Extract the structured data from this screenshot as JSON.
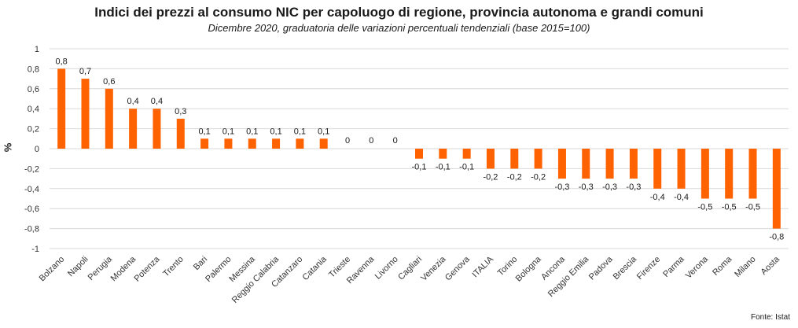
{
  "chart_data": {
    "type": "bar",
    "title": "Indici dei prezzi al consumo NIC per capoluogo di regione, provincia autonoma e grandi comuni",
    "subtitle": "Dicembre 2020, graduatoria delle variazioni percentuali tendenziali (base 2015=100)",
    "ylabel": "%",
    "xlabel": "",
    "ylim": [
      -1,
      1
    ],
    "yticks": [
      "1",
      "0,8",
      "0,6",
      "0,4",
      "0,2",
      "0",
      "-0,2",
      "-0,4",
      "-0,6",
      "-0,8",
      "-1"
    ],
    "grid": true,
    "bar_color": "#FF6200",
    "categories": [
      "Bolzano",
      "Napoli",
      "Perugia",
      "Modena",
      "Potenza",
      "Trento",
      "Bari",
      "Palermo",
      "Messina",
      "Reggio Calabria",
      "Catanzaro",
      "Catania",
      "Trieste",
      "Ravenna",
      "Livorno",
      "Cagliari",
      "Venezia",
      "Genova",
      "ITALIA",
      "Torino",
      "Bologna",
      "Ancona",
      "Reggio Emilia",
      "Padova",
      "Brescia",
      "Firenze",
      "Parma",
      "Verona",
      "Roma",
      "Milano",
      "Aosta"
    ],
    "values": [
      0.8,
      0.7,
      0.6,
      0.4,
      0.4,
      0.3,
      0.1,
      0.1,
      0.1,
      0.1,
      0.1,
      0.1,
      0,
      0,
      0,
      -0.1,
      -0.1,
      -0.1,
      -0.2,
      -0.2,
      -0.2,
      -0.3,
      -0.3,
      -0.3,
      -0.3,
      -0.4,
      -0.4,
      -0.5,
      -0.5,
      -0.5,
      -0.8
    ],
    "data_labels": [
      "0,8",
      "0,7",
      "0,6",
      "0,4",
      "0,4",
      "0,3",
      "0,1",
      "0,1",
      "0,1",
      "0,1",
      "0,1",
      "0,1",
      "0",
      "0",
      "0",
      "-0,1",
      "-0,1",
      "-0,1",
      "-0,2",
      "-0,2",
      "-0,2",
      "-0,3",
      "-0,3",
      "-0,3",
      "-0,3",
      "-0,4",
      "-0,4",
      "-0,5",
      "-0,5",
      "-0,5",
      "-0,8"
    ],
    "source": "Fonte: Istat"
  }
}
